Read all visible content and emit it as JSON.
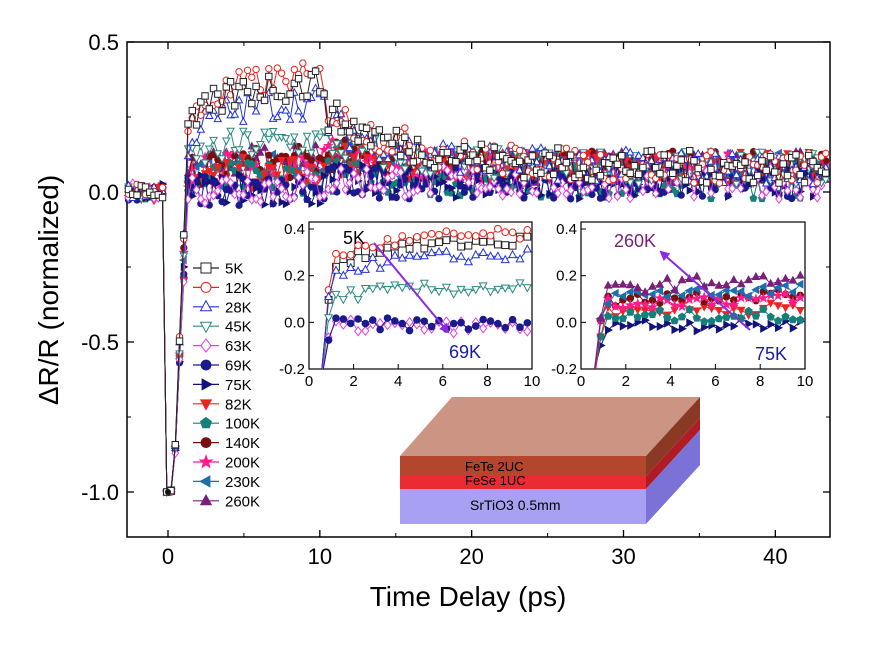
{
  "chart_data": {
    "type": "line",
    "xlabel": "Time Delay (ps)",
    "ylabel": "ΔR/R (normalized)",
    "xlim": [
      -2.7,
      43.6
    ],
    "ylim": [
      -1.15,
      0.5
    ],
    "xticks": [
      "0",
      "10",
      "20",
      "30",
      "40"
    ],
    "yticks": [
      "0.5",
      "0.0",
      "-0.5",
      "-1.0"
    ],
    "grid": false,
    "legend_position": "left-center",
    "series": [
      {
        "name": "5K",
        "marker": "square-open",
        "color": "#222222",
        "peak": 0.36
      },
      {
        "name": "12K",
        "marker": "circle-open",
        "color": "#e8231e",
        "peak": 0.38
      },
      {
        "name": "28K",
        "marker": "triangle-up-open",
        "color": "#2233dd",
        "peak": 0.3
      },
      {
        "name": "45K",
        "marker": "triangle-down-open",
        "color": "#2a8a80",
        "peak": 0.17
      },
      {
        "name": "63K",
        "marker": "diamond-open",
        "color": "#e040e0",
        "peak": 0.02
      },
      {
        "name": "69K",
        "marker": "circle",
        "color": "#1a1a8c",
        "peak": 0.0
      },
      {
        "name": "75K",
        "marker": "triangle-right",
        "color": "#12127a",
        "peak": 0.01
      },
      {
        "name": "82K",
        "marker": "triangle-down",
        "color": "#ee2222",
        "peak": 0.07
      },
      {
        "name": "100K",
        "marker": "pentagon",
        "color": "#138079",
        "peak": 0.05
      },
      {
        "name": "140K",
        "marker": "circle",
        "color": "#7a0f10",
        "peak": 0.1
      },
      {
        "name": "200K",
        "marker": "star",
        "color": "#ff1c8a",
        "peak": 0.09
      },
      {
        "name": "230K",
        "marker": "triangle-left",
        "color": "#1a6fae",
        "peak": 0.08
      },
      {
        "name": "260K",
        "marker": "triangle-up",
        "color": "#7a1f7a",
        "peak": 0.11
      }
    ],
    "minimum": {
      "x": 0.0,
      "y": -1.0
    },
    "insets": [
      {
        "xlim": [
          0,
          10
        ],
        "ylim": [
          -0.2,
          0.43
        ],
        "xticks": [
          "0",
          "2",
          "4",
          "6",
          "8",
          "10"
        ],
        "yticks": [
          "0.4",
          "0.2",
          "0.0",
          "-0.2"
        ],
        "series_shown": [
          "5K",
          "12K",
          "28K",
          "45K",
          "63K",
          "69K"
        ],
        "arrow": {
          "from_label": "5K",
          "to_label": "69K",
          "color": "#8a2be2"
        },
        "label_start": "5K",
        "label_end": "69K"
      },
      {
        "xlim": [
          0,
          10
        ],
        "ylim": [
          -0.2,
          0.43
        ],
        "xticks": [
          "0",
          "2",
          "4",
          "6",
          "8",
          "10"
        ],
        "yticks": [
          "0.4",
          "0.2",
          "0.0",
          "-0.2"
        ],
        "series_shown": [
          "75K",
          "82K",
          "100K",
          "140K",
          "200K",
          "230K",
          "260K"
        ],
        "arrow": {
          "from_label": "75K",
          "to_label": "260K",
          "color": "#8a2be2"
        },
        "label_start": "260K",
        "label_end": "75K"
      }
    ],
    "sample_diagram": {
      "layers": [
        {
          "label": "FeTe  2UC",
          "color": "#b5462e"
        },
        {
          "label": "FeSe  1UC",
          "color": "#ea2b34"
        },
        {
          "label": "SrTiO3  0.5mm",
          "color": "#a8a0f2"
        }
      ]
    }
  }
}
